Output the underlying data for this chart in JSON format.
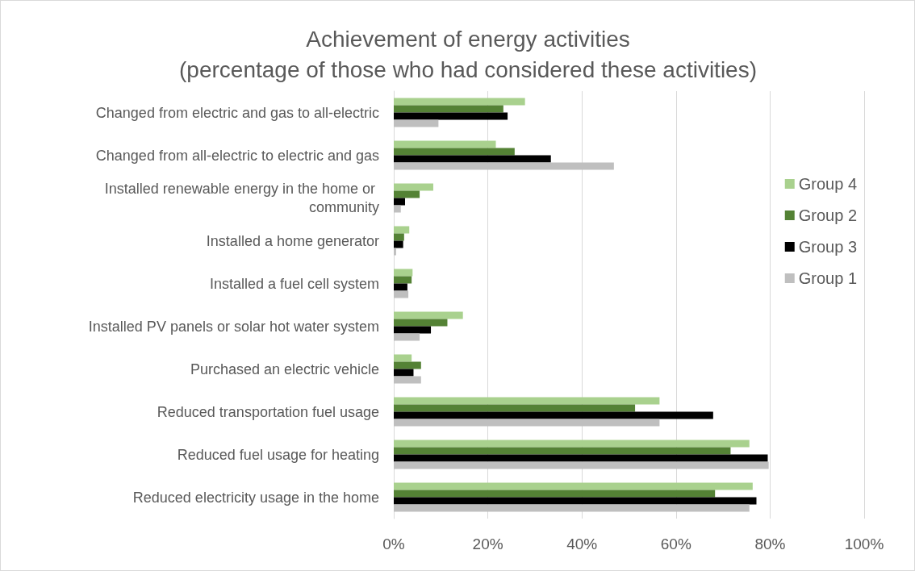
{
  "chart_data": {
    "type": "bar",
    "orientation": "horizontal",
    "title": "Achievement of energy activities",
    "subtitle": "(percentage of those who had considered these activities)",
    "categories": [
      "Changed from electric and gas to all-electric",
      "Changed from all-electric to electric and gas",
      "Installed renewable energy in the home or community",
      "Installed a home generator",
      "Installed a fuel cell system",
      "Installed PV panels or solar hot water system",
      "Purchased an electric vehicle",
      "Reduced transportation fuel usage",
      "Reduced fuel usage for heating",
      "Reduced electricity usage in the home"
    ],
    "series": [
      {
        "name": "Group 4",
        "color": "#a9d18e",
        "values": [
          27.9,
          21.7,
          8.4,
          3.3,
          4.0,
          14.7,
          3.8,
          56.5,
          75.6,
          76.3
        ]
      },
      {
        "name": "Group 2",
        "color": "#548235",
        "values": [
          23.3,
          25.7,
          5.5,
          2.2,
          3.8,
          11.4,
          5.8,
          51.3,
          71.6,
          68.3
        ]
      },
      {
        "name": "Group 3",
        "color": "#000000",
        "values": [
          24.2,
          33.4,
          2.4,
          2.0,
          2.9,
          7.9,
          4.2,
          67.9,
          79.5,
          77.1
        ]
      },
      {
        "name": "Group 1",
        "color": "#bfbfbf",
        "values": [
          9.5,
          46.8,
          1.5,
          0.5,
          3.1,
          5.5,
          5.8,
          56.5,
          79.7,
          75.6
        ]
      }
    ],
    "xlim": [
      0,
      100
    ],
    "xticks": [
      {
        "value": 0,
        "label": "0%"
      },
      {
        "value": 20,
        "label": "20%"
      },
      {
        "value": 40,
        "label": "40%"
      },
      {
        "value": 60,
        "label": "60%"
      },
      {
        "value": 80,
        "label": "80%"
      },
      {
        "value": 100,
        "label": "100%"
      }
    ],
    "grid": "x",
    "legend": "right"
  }
}
